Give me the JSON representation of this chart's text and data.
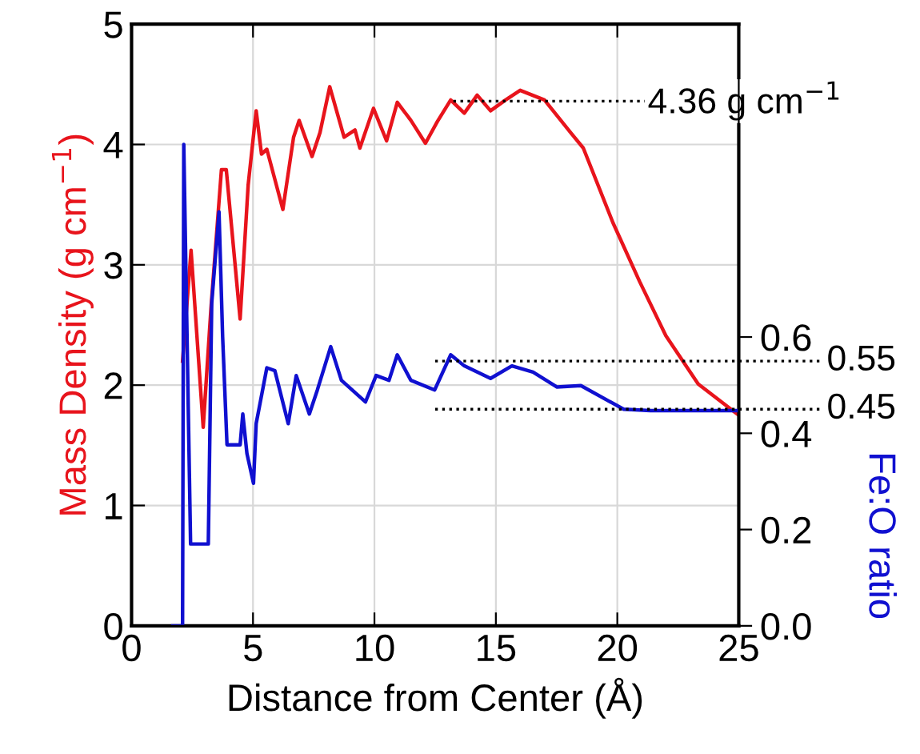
{
  "chart_data": {
    "type": "line",
    "xlabel": "Distance from Center (Å)",
    "ylabel": "Mass Density (g cm$^{−1}$)",
    "y2label": "Fe:O ratio",
    "xlim": [
      0,
      25
    ],
    "xticks": [
      0,
      5,
      10,
      15,
      20,
      25
    ],
    "ylim": [
      0,
      5
    ],
    "yticks": [
      0,
      1,
      2,
      3,
      4,
      5
    ],
    "y2lim": [
      0,
      1.25
    ],
    "y2ticks": [
      {
        "value": 0,
        "label": "0.0"
      },
      0.2,
      0.4,
      0.6
    ],
    "grid": true,
    "line_style": "solid",
    "series": [
      {
        "color": "#e8141c",
        "x": [
          2.1,
          2.45,
          2.95,
          3.27,
          3.7,
          3.9,
          4.47,
          4.8,
          5.13,
          5.35,
          5.57,
          6.23,
          6.67,
          6.9,
          7.43,
          7.76,
          8.16,
          8.75,
          9.2,
          9.4,
          9.96,
          10.5,
          10.94,
          11.5,
          12.1,
          12.59,
          13.14,
          13.7,
          14.23,
          14.78,
          15.4,
          16.0,
          17.0,
          18.07,
          18.6,
          19.82,
          20.92,
          22.0,
          23.33,
          24.87,
          25
        ],
        "values": [
          2.2,
          3.12,
          1.65,
          2.64,
          3.79,
          3.79,
          2.55,
          3.66,
          4.28,
          3.92,
          3.96,
          3.46,
          4.06,
          4.2,
          3.9,
          4.1,
          4.48,
          4.06,
          4.12,
          3.97,
          4.3,
          4.03,
          4.35,
          4.2,
          4.01,
          4.19,
          4.37,
          4.26,
          4.41,
          4.28,
          4.37,
          4.45,
          4.37,
          4.1,
          3.97,
          3.35,
          2.86,
          2.41,
          2.01,
          1.77,
          1.75
        ]
      },
      {
        "color": "#1010d0",
        "axis": "y2",
        "x": [
          1.7,
          2.1,
          2.15,
          2.43,
          3.16,
          3.3,
          3.6,
          3.75,
          3.93,
          4.47,
          4.58,
          4.75,
          5.02,
          5.13,
          5.57,
          5.9,
          6.45,
          6.78,
          7.32,
          7.65,
          8.2,
          8.64,
          9.63,
          10.07,
          10.6,
          10.94,
          11.5,
          12.48,
          13.14,
          13.7,
          14.78,
          15.66,
          16.53,
          17.52,
          18.5,
          20.26,
          21.36,
          25
        ],
        "values": [
          0,
          0,
          1.0,
          0.17,
          0.17,
          0.67,
          0.86,
          0.6,
          0.376,
          0.376,
          0.44,
          0.358,
          0.296,
          0.42,
          0.536,
          0.53,
          0.42,
          0.52,
          0.44,
          0.49,
          0.58,
          0.51,
          0.465,
          0.52,
          0.51,
          0.563,
          0.51,
          0.49,
          0.563,
          0.54,
          0.514,
          0.54,
          0.527,
          0.496,
          0.499,
          0.45,
          0.447,
          0.447
        ]
      }
    ],
    "ref_lines": [
      {
        "axis": "y",
        "value": 4.36,
        "label": "4.36 g cm$^{−1}$",
        "color": "#000000",
        "line_style": "dotted"
      },
      {
        "axis": "y2",
        "value": 0.55,
        "label": "0.55",
        "color": "#000000",
        "line_style": "dotted"
      },
      {
        "axis": "y2",
        "value": 0.45,
        "label": "0.45",
        "color": "#000000",
        "line_style": "dotted"
      }
    ]
  }
}
